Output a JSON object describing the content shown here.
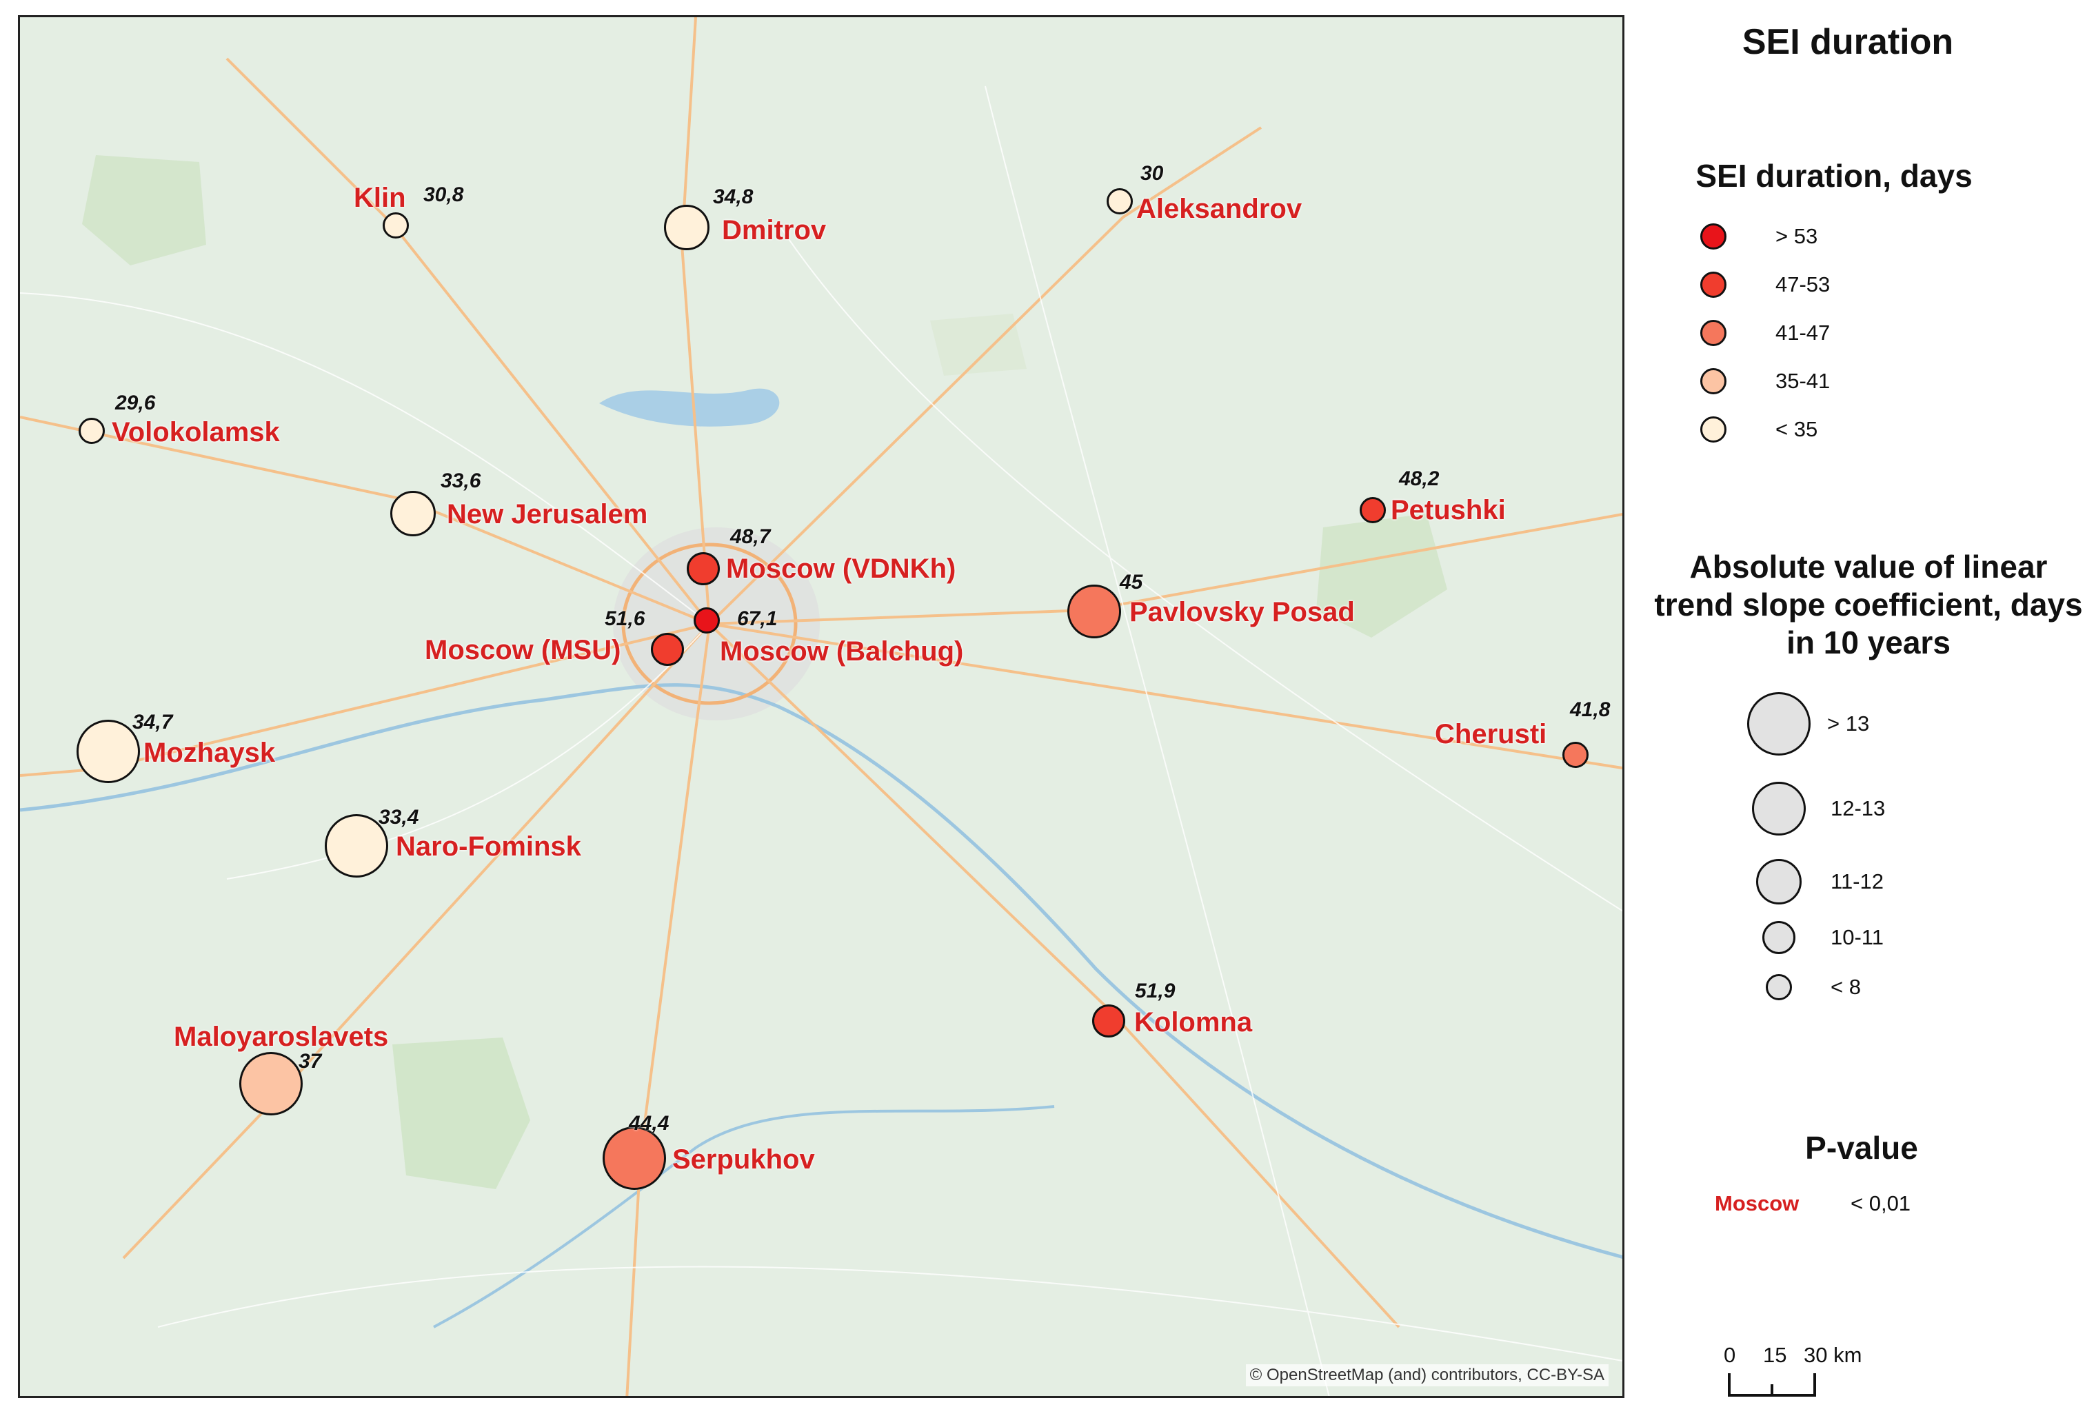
{
  "map": {
    "credit": "© OpenStreetMap (and) contributors, CC-BY-SA",
    "stations": [
      {
        "name": "Klin",
        "value": "30,8",
        "duration_class": "< 35",
        "slope_class": "< 8"
      },
      {
        "name": "Dmitrov",
        "value": "34,8",
        "duration_class": "< 35",
        "slope_class": "11-12"
      },
      {
        "name": "Aleksandrov",
        "value": "30",
        "duration_class": "< 35",
        "slope_class": "< 8"
      },
      {
        "name": "Volokolamsk",
        "value": "29,6",
        "duration_class": "< 35",
        "slope_class": "< 8"
      },
      {
        "name": "New Jerusalem",
        "value": "33,6",
        "duration_class": "< 35",
        "slope_class": "11-12"
      },
      {
        "name": "Petushki",
        "value": "48,2",
        "duration_class": "47-53",
        "slope_class": "< 8"
      },
      {
        "name": "Moscow (VDNKh)",
        "value": "48,7",
        "duration_class": "47-53",
        "slope_class": "10-11"
      },
      {
        "name": "Pavlovsky Posad",
        "value": "45",
        "duration_class": "41-47",
        "slope_class": "12-13"
      },
      {
        "name": "Moscow (MSU)",
        "value": "51,6",
        "duration_class": "47-53",
        "slope_class": "10-11"
      },
      {
        "name": "Moscow (Balchug)",
        "value": "67,1",
        "duration_class": "> 53",
        "slope_class": "< 8"
      },
      {
        "name": "Mozhaysk",
        "value": "34,7",
        "duration_class": "< 35",
        "slope_class": "> 13"
      },
      {
        "name": "Cherusti",
        "value": "41,8",
        "duration_class": "41-47",
        "slope_class": "< 8"
      },
      {
        "name": "Naro-Fominsk",
        "value": "33,4",
        "duration_class": "< 35",
        "slope_class": "> 13"
      },
      {
        "name": "Kolomna",
        "value": "51,9",
        "duration_class": "47-53",
        "slope_class": "10-11"
      },
      {
        "name": "Maloyaroslavets",
        "value": "37",
        "duration_class": "35-41",
        "slope_class": "> 13"
      },
      {
        "name": "Serpukhov",
        "value": "44,4",
        "duration_class": "41-47",
        "slope_class": "> 13"
      }
    ]
  },
  "legend": {
    "title": "SEI duration",
    "duration_title": "SEI duration, days",
    "duration_classes": [
      {
        "label": "> 53",
        "color": "#e8141a"
      },
      {
        "label": "47-53",
        "color": "#f03d2e"
      },
      {
        "label": "41-47",
        "color": "#f5775c"
      },
      {
        "label": "35-41",
        "color": "#fcc4a4"
      },
      {
        "label": "< 35",
        "color": "#fff1da"
      }
    ],
    "slope_title": "Absolute value of linear trend slope coefficient, days in 10 years",
    "slope_classes": [
      {
        "label": "> 13"
      },
      {
        "label": "12-13"
      },
      {
        "label": "11-12"
      },
      {
        "label": "10-11"
      },
      {
        "label": "< 8"
      }
    ],
    "pvalue_title": "P-value",
    "pvalue_sample": "Moscow",
    "pvalue_text": "< 0,01",
    "scalebar": {
      "ticks": [
        "0",
        "15",
        "30 km"
      ]
    }
  }
}
